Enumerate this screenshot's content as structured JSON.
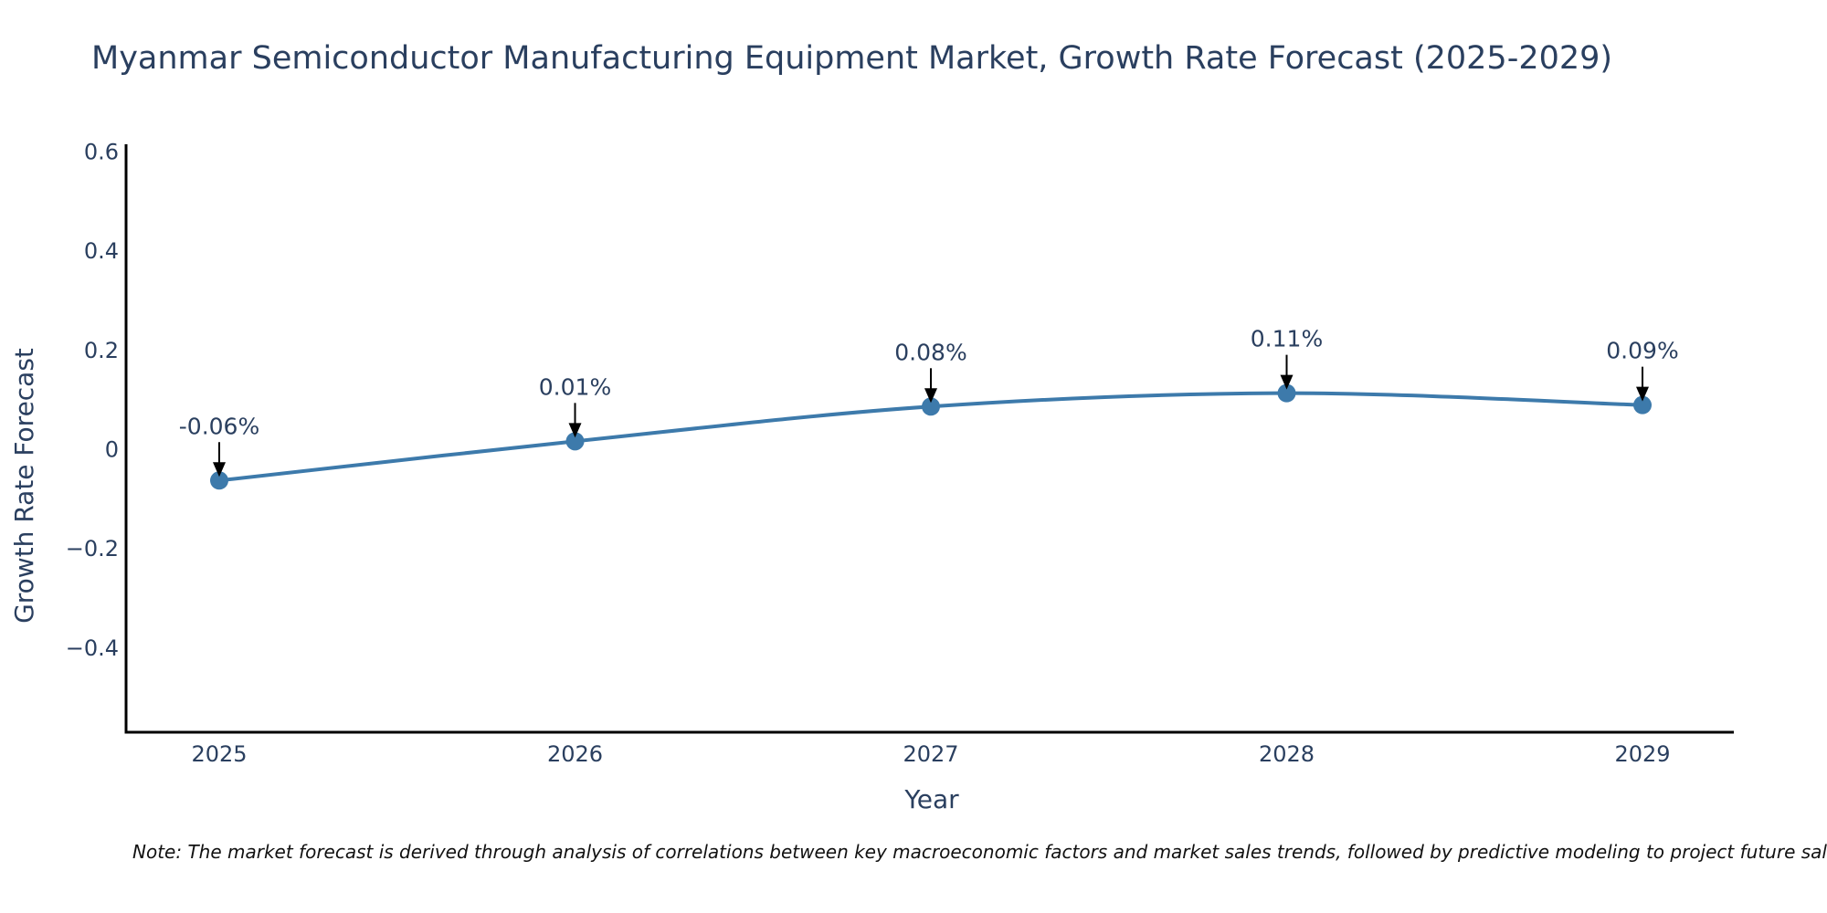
{
  "chart_data": {
    "type": "line",
    "title": "Myanmar Semiconductor Manufacturing Equipment Market, Growth Rate Forecast (2025-2029)",
    "xlabel": "Year",
    "ylabel": "Growth Rate Forecast",
    "categories": [
      "2025",
      "2026",
      "2027",
      "2028",
      "2029"
    ],
    "values": [
      -0.064,
      0.015,
      0.085,
      0.112,
      0.088
    ],
    "annotations": [
      "-0.06%",
      "0.01%",
      "0.08%",
      "0.11%",
      "0.09%"
    ],
    "ylim": [
      -0.57,
      0.6
    ],
    "yticks": [
      -0.4,
      -0.2,
      0,
      0.2,
      0.4,
      0.6
    ],
    "ytick_labels": [
      "−0.4",
      "−0.2",
      "0",
      "0.2",
      "0.4",
      "0.6"
    ],
    "series_color": "#3d7aab",
    "grid": false,
    "line_shape": "spline"
  },
  "note": "Note: The market forecast is derived through analysis of correlations between key macroeconomic factors and market sales trends, followed by predictive modeling to project future sales."
}
